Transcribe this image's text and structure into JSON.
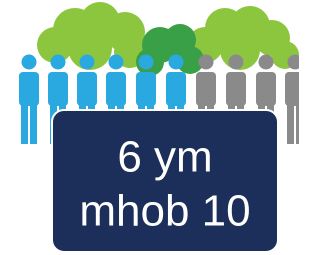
{
  "caption": {
    "lines": [
      "6 ym",
      "mhob 10"
    ]
  }
}
